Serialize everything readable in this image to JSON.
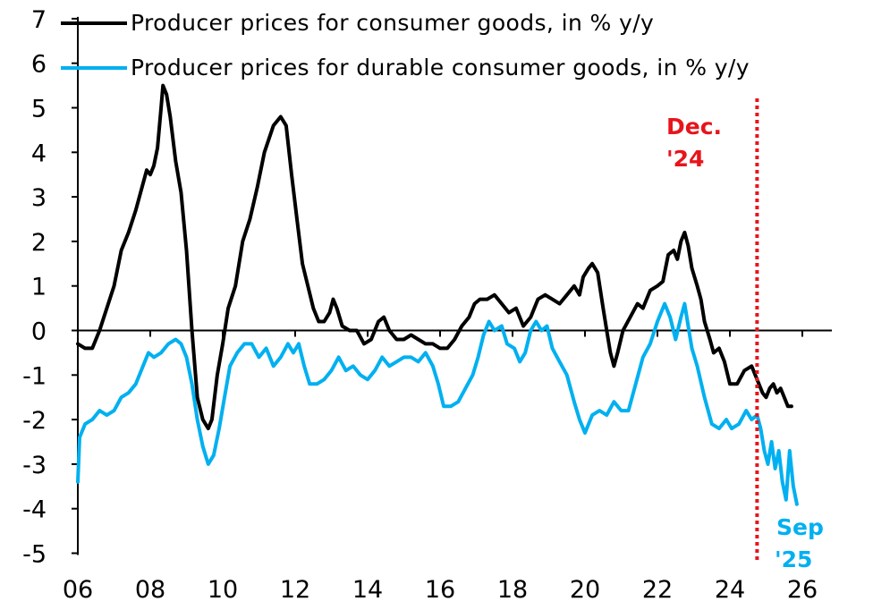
{
  "chart_data": {
    "type": "line",
    "x_range": [
      2006,
      2026
    ],
    "ylim": [
      -5,
      7
    ],
    "grid": false,
    "x_ticks": [
      {
        "value": 2006,
        "label": "06"
      },
      {
        "value": 2008,
        "label": "08"
      },
      {
        "value": 2010,
        "label": "10"
      },
      {
        "value": 2012,
        "label": "12"
      },
      {
        "value": 2014,
        "label": "14"
      },
      {
        "value": 2016,
        "label": "16"
      },
      {
        "value": 2018,
        "label": "18"
      },
      {
        "value": 2020,
        "label": "20"
      },
      {
        "value": 2022,
        "label": "22"
      },
      {
        "value": 2024,
        "label": "24"
      },
      {
        "value": 2026,
        "label": "26"
      }
    ],
    "y_ticks": [
      {
        "value": 7,
        "label": "7"
      },
      {
        "value": 6,
        "label": "6"
      },
      {
        "value": 5,
        "label": "5"
      },
      {
        "value": 4,
        "label": "4"
      },
      {
        "value": 3,
        "label": "3"
      },
      {
        "value": 2,
        "label": "2"
      },
      {
        "value": 1,
        "label": "1"
      },
      {
        "value": 0,
        "label": "0"
      },
      {
        "value": -1,
        "label": "-1"
      },
      {
        "value": -2,
        "label": "-2"
      },
      {
        "value": -3,
        "label": "-3"
      },
      {
        "value": -4,
        "label": "-4"
      },
      {
        "value": -5,
        "label": "-5"
      }
    ],
    "legend_position": "top-left",
    "series": [
      {
        "name": "Producer prices for consumer goods, in % y/y",
        "color": "#000000",
        "points": [
          [
            2006.0,
            -0.3
          ],
          [
            2006.2,
            -0.4
          ],
          [
            2006.4,
            -0.4
          ],
          [
            2006.6,
            0.0
          ],
          [
            2006.8,
            0.5
          ],
          [
            2007.0,
            1.0
          ],
          [
            2007.2,
            1.8
          ],
          [
            2007.4,
            2.2
          ],
          [
            2007.6,
            2.7
          ],
          [
            2007.8,
            3.3
          ],
          [
            2007.9,
            3.6
          ],
          [
            2008.0,
            3.5
          ],
          [
            2008.1,
            3.7
          ],
          [
            2008.2,
            4.1
          ],
          [
            2008.3,
            5.0
          ],
          [
            2008.35,
            5.5
          ],
          [
            2008.45,
            5.3
          ],
          [
            2008.55,
            4.8
          ],
          [
            2008.7,
            3.8
          ],
          [
            2008.85,
            3.1
          ],
          [
            2009.0,
            1.8
          ],
          [
            2009.15,
            0.0
          ],
          [
            2009.3,
            -1.5
          ],
          [
            2009.45,
            -2.0
          ],
          [
            2009.6,
            -2.2
          ],
          [
            2009.7,
            -2.0
          ],
          [
            2009.85,
            -1.0
          ],
          [
            2010.0,
            -0.3
          ],
          [
            2010.15,
            0.5
          ],
          [
            2010.35,
            1.0
          ],
          [
            2010.55,
            2.0
          ],
          [
            2010.75,
            2.5
          ],
          [
            2010.95,
            3.2
          ],
          [
            2011.15,
            4.0
          ],
          [
            2011.4,
            4.6
          ],
          [
            2011.6,
            4.8
          ],
          [
            2011.75,
            4.6
          ],
          [
            2011.9,
            3.5
          ],
          [
            2012.05,
            2.5
          ],
          [
            2012.2,
            1.5
          ],
          [
            2012.35,
            1.0
          ],
          [
            2012.5,
            0.5
          ],
          [
            2012.65,
            0.2
          ],
          [
            2012.8,
            0.2
          ],
          [
            2012.95,
            0.4
          ],
          [
            2013.05,
            0.7
          ],
          [
            2013.15,
            0.5
          ],
          [
            2013.3,
            0.1
          ],
          [
            2013.5,
            0.0
          ],
          [
            2013.7,
            0.0
          ],
          [
            2013.9,
            -0.3
          ],
          [
            2014.1,
            -0.2
          ],
          [
            2014.3,
            0.2
          ],
          [
            2014.45,
            0.3
          ],
          [
            2014.6,
            0.0
          ],
          [
            2014.8,
            -0.2
          ],
          [
            2015.0,
            -0.2
          ],
          [
            2015.2,
            -0.1
          ],
          [
            2015.4,
            -0.2
          ],
          [
            2015.6,
            -0.3
          ],
          [
            2015.8,
            -0.3
          ],
          [
            2016.0,
            -0.4
          ],
          [
            2016.2,
            -0.4
          ],
          [
            2016.4,
            -0.2
          ],
          [
            2016.6,
            0.1
          ],
          [
            2016.8,
            0.3
          ],
          [
            2016.95,
            0.6
          ],
          [
            2017.1,
            0.7
          ],
          [
            2017.3,
            0.7
          ],
          [
            2017.5,
            0.8
          ],
          [
            2017.7,
            0.6
          ],
          [
            2017.9,
            0.4
          ],
          [
            2018.1,
            0.5
          ],
          [
            2018.3,
            0.1
          ],
          [
            2018.5,
            0.3
          ],
          [
            2018.7,
            0.7
          ],
          [
            2018.9,
            0.8
          ],
          [
            2019.1,
            0.7
          ],
          [
            2019.3,
            0.6
          ],
          [
            2019.5,
            0.8
          ],
          [
            2019.7,
            1.0
          ],
          [
            2019.85,
            0.8
          ],
          [
            2019.95,
            1.2
          ],
          [
            2020.1,
            1.4
          ],
          [
            2020.2,
            1.5
          ],
          [
            2020.35,
            1.3
          ],
          [
            2020.5,
            0.5
          ],
          [
            2020.6,
            0.0
          ],
          [
            2020.7,
            -0.5
          ],
          [
            2020.8,
            -0.8
          ],
          [
            2020.9,
            -0.5
          ],
          [
            2021.05,
            0.0
          ],
          [
            2021.25,
            0.3
          ],
          [
            2021.45,
            0.6
          ],
          [
            2021.6,
            0.5
          ],
          [
            2021.8,
            0.9
          ],
          [
            2022.0,
            1.0
          ],
          [
            2022.15,
            1.1
          ],
          [
            2022.3,
            1.7
          ],
          [
            2022.45,
            1.8
          ],
          [
            2022.55,
            1.6
          ],
          [
            2022.65,
            2.0
          ],
          [
            2022.75,
            2.2
          ],
          [
            2022.85,
            1.9
          ],
          [
            2022.95,
            1.4
          ],
          [
            2023.1,
            1.0
          ],
          [
            2023.2,
            0.7
          ],
          [
            2023.3,
            0.2
          ],
          [
            2023.45,
            -0.2
          ],
          [
            2023.55,
            -0.5
          ],
          [
            2023.7,
            -0.4
          ],
          [
            2023.85,
            -0.7
          ],
          [
            2024.0,
            -1.2
          ],
          [
            2024.2,
            -1.2
          ],
          [
            2024.4,
            -0.9
          ],
          [
            2024.6,
            -0.8
          ],
          [
            2024.75,
            -1.1
          ],
          [
            2024.9,
            -1.4
          ],
          [
            2025.0,
            -1.5
          ],
          [
            2025.1,
            -1.3
          ],
          [
            2025.2,
            -1.2
          ],
          [
            2025.3,
            -1.4
          ],
          [
            2025.4,
            -1.3
          ],
          [
            2025.5,
            -1.5
          ],
          [
            2025.6,
            -1.7
          ],
          [
            2025.7,
            -1.7
          ]
        ]
      },
      {
        "name": "Producer prices for durable consumer goods, in % y/y",
        "color": "#00b0f0",
        "points": [
          [
            2006.0,
            -3.4
          ],
          [
            2006.05,
            -2.4
          ],
          [
            2006.2,
            -2.1
          ],
          [
            2006.4,
            -2.0
          ],
          [
            2006.6,
            -1.8
          ],
          [
            2006.8,
            -1.9
          ],
          [
            2007.0,
            -1.8
          ],
          [
            2007.2,
            -1.5
          ],
          [
            2007.4,
            -1.4
          ],
          [
            2007.6,
            -1.2
          ],
          [
            2007.8,
            -0.8
          ],
          [
            2007.95,
            -0.5
          ],
          [
            2008.1,
            -0.6
          ],
          [
            2008.3,
            -0.5
          ],
          [
            2008.5,
            -0.3
          ],
          [
            2008.7,
            -0.2
          ],
          [
            2008.85,
            -0.3
          ],
          [
            2009.0,
            -0.6
          ],
          [
            2009.15,
            -1.2
          ],
          [
            2009.3,
            -2.0
          ],
          [
            2009.45,
            -2.6
          ],
          [
            2009.6,
            -3.0
          ],
          [
            2009.75,
            -2.8
          ],
          [
            2009.9,
            -2.2
          ],
          [
            2010.05,
            -1.5
          ],
          [
            2010.2,
            -0.8
          ],
          [
            2010.4,
            -0.5
          ],
          [
            2010.6,
            -0.3
          ],
          [
            2010.8,
            -0.3
          ],
          [
            2011.0,
            -0.6
          ],
          [
            2011.2,
            -0.4
          ],
          [
            2011.4,
            -0.8
          ],
          [
            2011.6,
            -0.6
          ],
          [
            2011.8,
            -0.3
          ],
          [
            2011.95,
            -0.5
          ],
          [
            2012.1,
            -0.3
          ],
          [
            2012.25,
            -0.8
          ],
          [
            2012.4,
            -1.2
          ],
          [
            2012.6,
            -1.2
          ],
          [
            2012.8,
            -1.1
          ],
          [
            2013.0,
            -0.9
          ],
          [
            2013.2,
            -0.6
          ],
          [
            2013.4,
            -0.9
          ],
          [
            2013.6,
            -0.8
          ],
          [
            2013.8,
            -1.0
          ],
          [
            2014.0,
            -1.1
          ],
          [
            2014.2,
            -0.9
          ],
          [
            2014.4,
            -0.6
          ],
          [
            2014.6,
            -0.8
          ],
          [
            2014.8,
            -0.7
          ],
          [
            2015.0,
            -0.6
          ],
          [
            2015.2,
            -0.6
          ],
          [
            2015.4,
            -0.7
          ],
          [
            2015.6,
            -0.5
          ],
          [
            2015.8,
            -0.8
          ],
          [
            2015.95,
            -1.2
          ],
          [
            2016.1,
            -1.7
          ],
          [
            2016.3,
            -1.7
          ],
          [
            2016.5,
            -1.6
          ],
          [
            2016.7,
            -1.3
          ],
          [
            2016.9,
            -1.0
          ],
          [
            2017.05,
            -0.6
          ],
          [
            2017.2,
            -0.1
          ],
          [
            2017.35,
            0.2
          ],
          [
            2017.5,
            0.0
          ],
          [
            2017.7,
            0.1
          ],
          [
            2017.85,
            -0.3
          ],
          [
            2018.05,
            -0.4
          ],
          [
            2018.2,
            -0.7
          ],
          [
            2018.35,
            -0.5
          ],
          [
            2018.5,
            0.0
          ],
          [
            2018.65,
            0.2
          ],
          [
            2018.8,
            0.0
          ],
          [
            2018.95,
            0.1
          ],
          [
            2019.1,
            -0.4
          ],
          [
            2019.3,
            -0.7
          ],
          [
            2019.5,
            -1.0
          ],
          [
            2019.7,
            -1.6
          ],
          [
            2019.85,
            -2.0
          ],
          [
            2020.0,
            -2.3
          ],
          [
            2020.2,
            -1.9
          ],
          [
            2020.4,
            -1.8
          ],
          [
            2020.6,
            -1.9
          ],
          [
            2020.8,
            -1.6
          ],
          [
            2021.0,
            -1.8
          ],
          [
            2021.2,
            -1.8
          ],
          [
            2021.4,
            -1.2
          ],
          [
            2021.6,
            -0.6
          ],
          [
            2021.8,
            -0.3
          ],
          [
            2022.0,
            0.2
          ],
          [
            2022.2,
            0.6
          ],
          [
            2022.35,
            0.3
          ],
          [
            2022.5,
            -0.2
          ],
          [
            2022.65,
            0.3
          ],
          [
            2022.75,
            0.6
          ],
          [
            2022.85,
            0.1
          ],
          [
            2022.95,
            -0.4
          ],
          [
            2023.1,
            -0.8
          ],
          [
            2023.3,
            -1.5
          ],
          [
            2023.5,
            -2.1
          ],
          [
            2023.7,
            -2.2
          ],
          [
            2023.9,
            -2.0
          ],
          [
            2024.05,
            -2.2
          ],
          [
            2024.25,
            -2.1
          ],
          [
            2024.45,
            -1.8
          ],
          [
            2024.6,
            -2.0
          ],
          [
            2024.75,
            -1.9
          ],
          [
            2024.85,
            -2.2
          ],
          [
            2024.95,
            -2.7
          ],
          [
            2025.05,
            -3.0
          ],
          [
            2025.15,
            -2.5
          ],
          [
            2025.25,
            -3.1
          ],
          [
            2025.35,
            -2.7
          ],
          [
            2025.45,
            -3.4
          ],
          [
            2025.55,
            -3.8
          ],
          [
            2025.65,
            -2.7
          ],
          [
            2025.75,
            -3.5
          ],
          [
            2025.85,
            -3.9
          ]
        ]
      }
    ],
    "annotations": {
      "vline": {
        "x": 2024.75,
        "color": "#e8141b",
        "style": "dotted",
        "label_lines": [
          "Dec.",
          "'24"
        ]
      },
      "end_label": {
        "color": "#00b0f0",
        "label_lines": [
          "Sep",
          "'25"
        ]
      }
    }
  }
}
